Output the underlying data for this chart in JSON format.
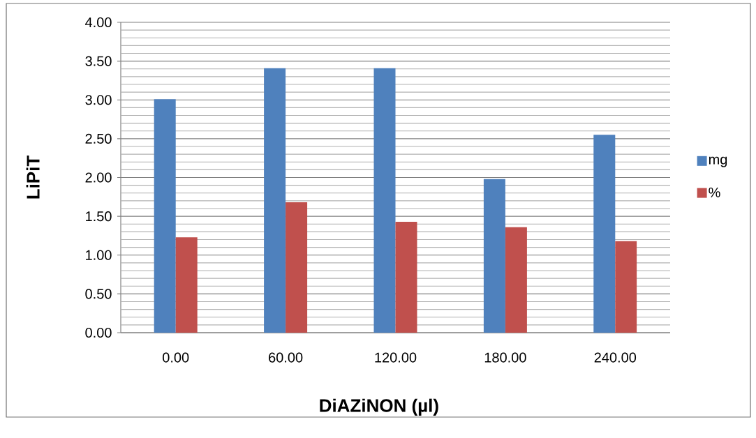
{
  "chart_data": {
    "type": "bar",
    "xlabel": "DiAZiNON (**µl**)",
    "ylabel": "LiPiT",
    "categories": [
      "0.00",
      "60.00",
      "120.00",
      "180.00",
      "240.00"
    ],
    "series": [
      {
        "name": "mg",
        "color": "#4f81bd",
        "values": [
          3.01,
          3.41,
          3.41,
          1.98,
          2.55
        ]
      },
      {
        "name": "%",
        "color": "#c0504d",
        "values": [
          1.23,
          1.68,
          1.43,
          1.36,
          1.18
        ]
      }
    ],
    "ylim": [
      0,
      4
    ],
    "yticks": [
      {
        "value": 0,
        "label": "0.00"
      },
      {
        "value": 0.1,
        "label": null
      },
      {
        "value": 0.2,
        "label": null
      },
      {
        "value": 0.3,
        "label": null
      },
      {
        "value": 0.4,
        "label": null
      },
      {
        "value": 0.5,
        "label": "0.50"
      },
      {
        "value": 0.6,
        "label": null
      },
      {
        "value": 0.7,
        "label": null
      },
      {
        "value": 0.8,
        "label": null
      },
      {
        "value": 0.9,
        "label": null
      },
      {
        "value": 1,
        "label": "1.00"
      },
      {
        "value": 1.1,
        "label": null
      },
      {
        "value": 1.2,
        "label": null
      },
      {
        "value": 1.3,
        "label": null
      },
      {
        "value": 1.4,
        "label": null
      },
      {
        "value": 1.5,
        "label": "1.50"
      },
      {
        "value": 1.6,
        "label": null
      },
      {
        "value": 1.7,
        "label": null
      },
      {
        "value": 1.8,
        "label": null
      },
      {
        "value": 1.9,
        "label": null
      },
      {
        "value": 2,
        "label": "2.00"
      },
      {
        "value": 2.1,
        "label": null
      },
      {
        "value": 2.2,
        "label": null
      },
      {
        "value": 2.3,
        "label": null
      },
      {
        "value": 2.4,
        "label": null
      },
      {
        "value": 2.5,
        "label": "2.50"
      },
      {
        "value": 2.6,
        "label": null
      },
      {
        "value": 2.7,
        "label": null
      },
      {
        "value": 2.8,
        "label": null
      },
      {
        "value": 2.9,
        "label": null
      },
      {
        "value": 3,
        "label": "3.00"
      },
      {
        "value": 3.1,
        "label": null
      },
      {
        "value": 3.2,
        "label": null
      },
      {
        "value": 3.3,
        "label": null
      },
      {
        "value": 3.4,
        "label": null
      },
      {
        "value": 3.5,
        "label": "3.50"
      },
      {
        "value": 3.6,
        "label": null
      },
      {
        "value": 3.7,
        "label": null
      },
      {
        "value": 3.8,
        "label": null
      },
      {
        "value": 3.9,
        "label": null
      },
      {
        "value": 4,
        "label": "4.00"
      }
    ],
    "grid": "y",
    "legend": "right"
  }
}
